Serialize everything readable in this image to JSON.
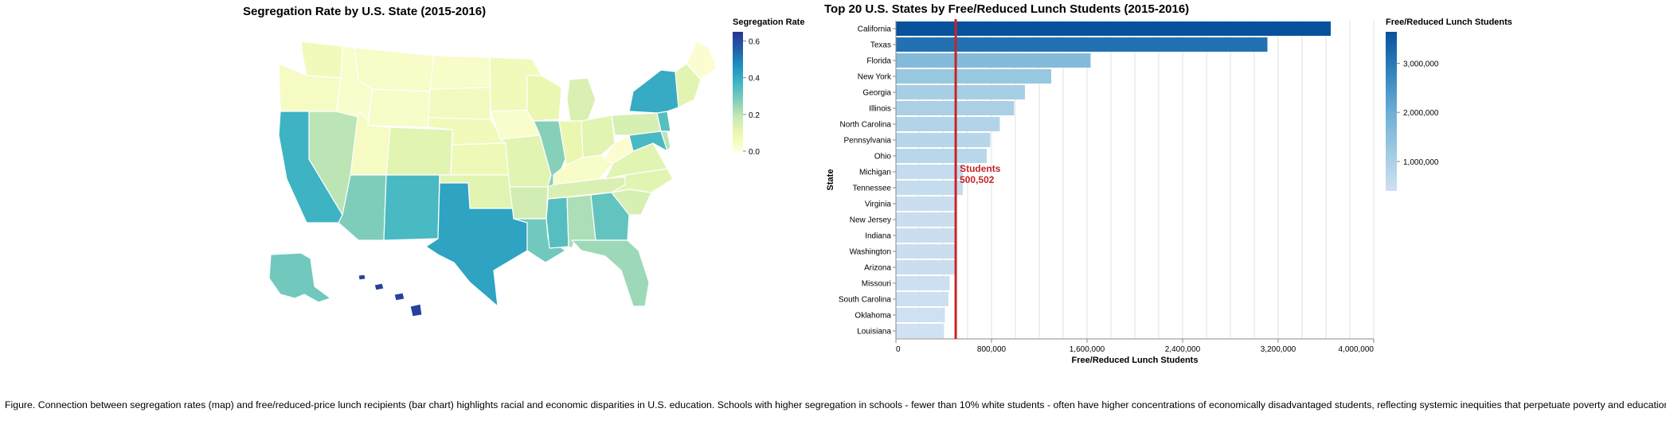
{
  "map": {
    "title": "Segregation Rate by U.S. State (2015-2016)",
    "legend": {
      "title": "Segregation Rate",
      "ticks": [
        "0.6",
        "0.4",
        "0.2",
        "0.0"
      ],
      "tick_values": [
        0.6,
        0.4,
        0.2,
        0.0
      ],
      "domain": [
        0,
        0.65
      ],
      "colors": [
        "#ffffd9",
        "#edf8b1",
        "#c7e9b4",
        "#7fcdbb",
        "#41b6c4",
        "#1d91c0",
        "#225ea8",
        "#253494"
      ]
    },
    "state_values": {
      "California": 0.38,
      "Texas": 0.42,
      "Florida": 0.24,
      "New York": 0.4,
      "Georgia": 0.32,
      "Illinois": 0.27,
      "Hawaii": 0.62,
      "Alaska": 0.3,
      "New Mexico": 0.36,
      "Arizona": 0.28,
      "Nevada": 0.2,
      "Louisiana": 0.3,
      "Mississippi": 0.34,
      "Alabama": 0.22,
      "Maryland": 0.36,
      "New Jersey": 0.34,
      "Washington": 0.07,
      "Oregon": 0.05,
      "Idaho": 0.03,
      "Montana": 0.04,
      "Wyoming": 0.04,
      "Utah": 0.05,
      "Colorado": 0.12,
      "North Dakota": 0.04,
      "South Dakota": 0.06,
      "Nebraska": 0.07,
      "Kansas": 0.08,
      "Oklahoma": 0.12,
      "Minnesota": 0.07,
      "Iowa": 0.03,
      "Missouri": 0.12,
      "Arkansas": 0.16,
      "Wisconsin": 0.1,
      "Michigan": 0.14,
      "Indiana": 0.1,
      "Ohio": 0.12,
      "Kentucky": 0.04,
      "Tennessee": 0.14,
      "West Virginia": 0.02,
      "Virginia": 0.12,
      "North Carolina": 0.12,
      "South Carolina": 0.15,
      "Pennsylvania": 0.15,
      "Maine": 0.02,
      "New England": 0.12,
      "Delaware": 0.2
    }
  },
  "chart_data": {
    "type": "bar",
    "orientation": "horizontal",
    "title": "Top 20 U.S. States by Free/Reduced Lunch Students (2015-2016)",
    "xlabel": "Free/Reduced Lunch Students",
    "ylabel": "State",
    "xlim": [
      0,
      4000000
    ],
    "x_ticks": [
      "0",
      "800,000",
      "1,600,000",
      "2,400,000",
      "3,200,000",
      "4,000,000"
    ],
    "x_tick_values": [
      0,
      800000,
      1600000,
      2400000,
      3200000,
      4000000
    ],
    "grid": true,
    "categories": [
      "California",
      "Texas",
      "Florida",
      "New York",
      "Georgia",
      "Illinois",
      "North Carolina",
      "Pennsylvania",
      "Ohio",
      "Michigan",
      "Tennessee",
      "Virginia",
      "New Jersey",
      "Indiana",
      "Washington",
      "Arizona",
      "Missouri",
      "South Carolina",
      "Oklahoma",
      "Louisiana"
    ],
    "values": [
      3640000,
      3110000,
      1630000,
      1300000,
      1080000,
      990000,
      870000,
      790000,
      760000,
      560000,
      560000,
      490000,
      490000,
      490000,
      490000,
      490000,
      450000,
      440000,
      410000,
      400000
    ],
    "reference_line": {
      "value": 500502,
      "label": "Students",
      "value_label": "500,502",
      "color": "#c82426"
    },
    "legend": {
      "title": "Free/Reduced Lunch Students",
      "position": "right",
      "ticks": [
        "3,000,000",
        "2,000,000",
        "1,000,000"
      ],
      "tick_values": [
        3000000,
        2000000,
        1000000
      ],
      "domain": [
        400000,
        3640000
      ],
      "colors": [
        "#cfe1f2",
        "#9ecae1",
        "#6baed6",
        "#3182bd",
        "#08519c"
      ]
    }
  },
  "caption": "Figure. Connection between segregation rates (map) and free/reduced-price lunch recipients (bar chart) highlights racial and economic disparities in U.S. education. Schools with higher segregation in schools - fewer than 10% white students - often have higher concentrations of economically disadvantaged students, reflecting systemic inequities that perpetuate poverty and educational gaps."
}
